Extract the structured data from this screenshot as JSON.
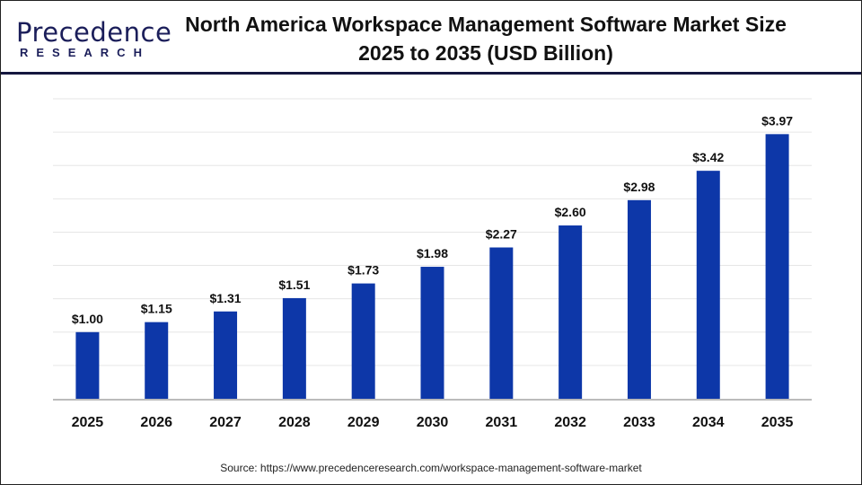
{
  "logo": {
    "line1": "Precedence",
    "line2": "RESEARCH"
  },
  "title_line1": "North America Workspace Management Software Market Size",
  "title_line2": "2025 to 2035 (USD Billion)",
  "source": "Source: https://www.precedenceresearch.com/workspace-management-software-market",
  "colors": {
    "bar": "#0d37a8",
    "grid": "#e6e6e6",
    "axis": "#bbbbbb"
  },
  "chart_data": {
    "type": "bar",
    "title": "North America Workspace Management Software Market Size 2025 to 2035 (USD Billion)",
    "categories": [
      "2025",
      "2026",
      "2027",
      "2028",
      "2029",
      "2030",
      "2031",
      "2032",
      "2033",
      "2034",
      "2035"
    ],
    "values": [
      1.0,
      1.15,
      1.31,
      1.51,
      1.73,
      1.98,
      2.27,
      2.6,
      2.98,
      3.42,
      3.97
    ],
    "data_labels": [
      "$1.00",
      "$1.15",
      "$1.31",
      "$1.51",
      "$1.73",
      "$1.98",
      "$2.27",
      "$2.60",
      "$2.98",
      "$3.42",
      "$3.97"
    ],
    "xlabel": "",
    "ylabel": "",
    "ylim": [
      0,
      4.5
    ],
    "grid": true,
    "legend": "none"
  }
}
